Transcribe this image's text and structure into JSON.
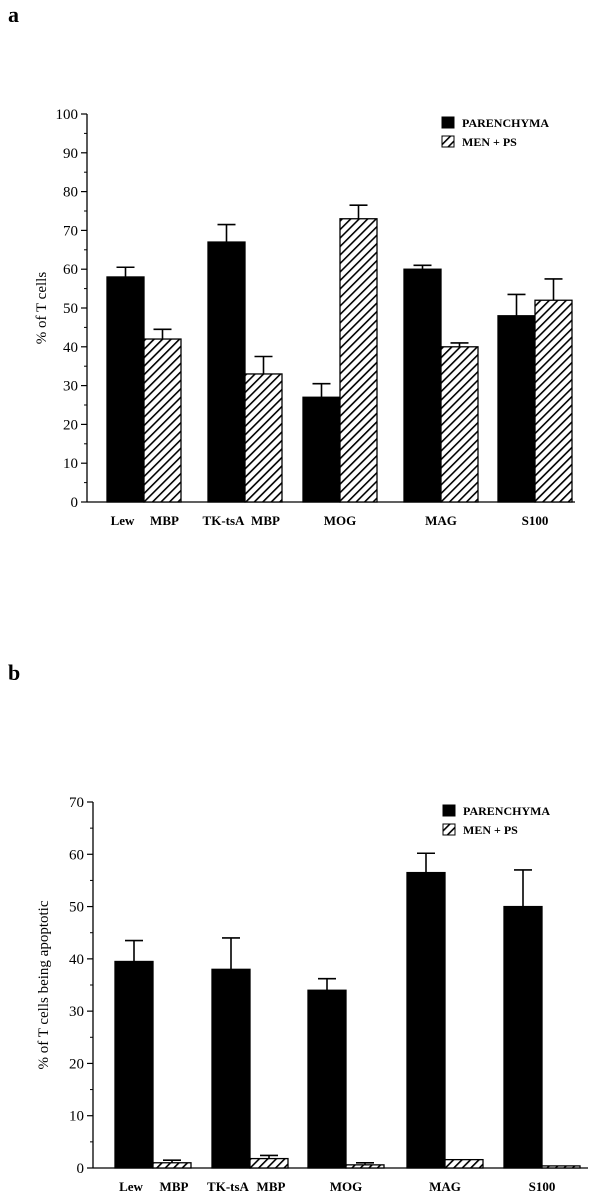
{
  "panels": [
    {
      "letter": "a"
    },
    {
      "letter": "b"
    }
  ],
  "chart_data": [
    {
      "type": "bar",
      "ylabel": "% of T cells",
      "xlabel": "",
      "ylim": [
        0,
        100
      ],
      "yticks": [
        0,
        10,
        20,
        30,
        40,
        50,
        60,
        70,
        80,
        90,
        100
      ],
      "categories": [
        "Lew MBP",
        "TK-tsA MBP",
        "MOG",
        "MAG",
        "S100"
      ],
      "series": [
        {
          "name": "PARENCHYMA",
          "color": "#000000",
          "pattern": "solid",
          "values": [
            58,
            67,
            27,
            60,
            48
          ],
          "errors": [
            2.5,
            4.5,
            3.5,
            1,
            5.5
          ]
        },
        {
          "name": "MEN + PS",
          "color": "#000000",
          "pattern": "hatch",
          "values": [
            42,
            33,
            73,
            40,
            52
          ],
          "errors": [
            2.5,
            4.5,
            3.5,
            1,
            5.5
          ]
        }
      ],
      "legend": "top-right",
      "grid": false
    },
    {
      "type": "bar",
      "ylabel": "% of T cells being apoptotic",
      "xlabel": "",
      "ylim": [
        0,
        70
      ],
      "yticks": [
        0,
        10,
        20,
        30,
        40,
        50,
        60,
        70
      ],
      "categories": [
        "Lew MBP",
        "TK-tsA MBP",
        "MOG",
        "MAG",
        "S100"
      ],
      "series": [
        {
          "name": "PARENCHYMA",
          "color": "#000000",
          "pattern": "solid",
          "values": [
            39.5,
            38,
            34,
            56.5,
            50
          ],
          "errors": [
            4,
            6,
            2.2,
            3.7,
            7
          ]
        },
        {
          "name": "MEN + PS",
          "color": "#000000",
          "pattern": "hatch",
          "values": [
            1,
            1.8,
            0.6,
            1.6,
            0.4
          ],
          "errors": [
            0.5,
            0.6,
            0.4,
            0,
            0
          ]
        }
      ],
      "legend": "top-right",
      "grid": false
    }
  ]
}
